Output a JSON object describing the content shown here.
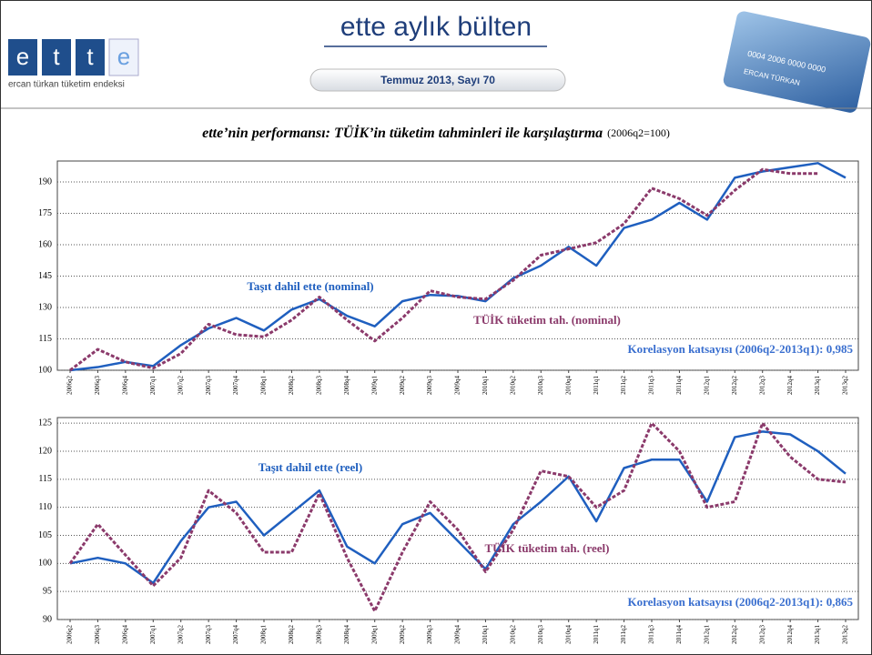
{
  "header": {
    "logo_letters": [
      "e",
      "t",
      "t",
      "e"
    ],
    "logo_caption": "ercan türkan tüketim endeksi",
    "title": "ette aylık bülten",
    "issue": "Temmuz 2013, Sayı 70",
    "card_number": "0004 2006 0000 0000",
    "card_name": "ERCAN TÜRKAN"
  },
  "figure_title": {
    "main": "ette’nin performansı: TÜİK’in tüketim tahminleri ile karşılaştırma",
    "note": "(2006q2=100)"
  },
  "chart_data": [
    {
      "type": "line",
      "categories": [
        "2006q2",
        "2006q3",
        "2006q4",
        "2007q1",
        "2007q2",
        "2007q3",
        "2007q4",
        "2008q1",
        "2008q2",
        "2008q3",
        "2008q4",
        "2009q1",
        "2009q2",
        "2009q3",
        "2009q4",
        "2010q1",
        "2010q2",
        "2010q3",
        "2010q4",
        "2011q1",
        "2011q2",
        "2011q3",
        "2011q4",
        "2012q1",
        "2012q2",
        "2012q3",
        "2012q4",
        "2013q1",
        "2013q2"
      ],
      "series": [
        {
          "name": "Taşıt dahil ette (nominal)",
          "color": "#1f5fbf",
          "style": "solid",
          "values": [
            100,
            101.5,
            104,
            102,
            112,
            120,
            125,
            119,
            129,
            134,
            126,
            121,
            133,
            136,
            135.5,
            133,
            144,
            150,
            159,
            150,
            168,
            172,
            180,
            172,
            192,
            195,
            197,
            199,
            192
          ]
        },
        {
          "name": "TÜİK tüketim tah. (nominal)",
          "color": "#8b3a6b",
          "style": "dashed",
          "values": [
            100,
            110,
            104,
            101,
            108,
            122,
            117,
            116,
            124,
            135,
            124,
            114,
            125,
            138,
            135,
            134,
            143,
            155,
            158,
            161,
            170,
            187,
            182,
            174,
            186,
            196,
            194,
            194,
            null
          ]
        }
      ],
      "annotation": "Korelasyon katsayısı (2006q2-2013q1): 0,985",
      "ylim": [
        100,
        200
      ],
      "yticks": [
        100,
        115,
        130,
        145,
        160,
        175,
        190
      ],
      "grid": true
    },
    {
      "type": "line",
      "categories": [
        "2006q2",
        "2006q3",
        "2006q4",
        "2007q1",
        "2007q2",
        "2007q3",
        "2007q4",
        "2008q1",
        "2008q2",
        "2008q3",
        "2008q4",
        "2009q1",
        "2009q2",
        "2009q3",
        "2009q4",
        "2010q1",
        "2010q2",
        "2010q3",
        "2010q4",
        "2011q1",
        "2011q2",
        "2011q3",
        "2011q4",
        "2012q1",
        "2012q2",
        "2012q3",
        "2012q4",
        "2013q1",
        "2013q2"
      ],
      "series": [
        {
          "name": "Taşıt dahil ette (reel)",
          "color": "#1f5fbf",
          "style": "solid",
          "values": [
            100,
            101,
            100,
            96.5,
            104,
            110,
            111,
            105,
            109,
            113,
            103,
            100,
            107,
            109,
            104,
            99,
            107,
            111,
            115.5,
            107.5,
            117,
            118.5,
            118.5,
            111,
            122.5,
            123.5,
            123,
            120,
            116
          ]
        },
        {
          "name": "TÜİK tüketim tah. (reel)",
          "color": "#8b3a6b",
          "style": "dashed",
          "values": [
            100,
            107,
            101.5,
            96,
            101,
            113,
            109,
            102,
            102,
            112.5,
            101,
            91.5,
            102,
            111,
            106,
            98.5,
            106,
            116.5,
            115.5,
            110,
            113,
            125,
            120,
            110,
            111,
            125,
            119,
            115,
            114.5
          ]
        }
      ],
      "annotation": "Korelasyon katsayısı (2006q2-2013q1): 0,865",
      "ylim": [
        90,
        126
      ],
      "yticks": [
        90,
        95,
        100,
        105,
        110,
        115,
        120,
        125
      ],
      "grid": true
    }
  ]
}
